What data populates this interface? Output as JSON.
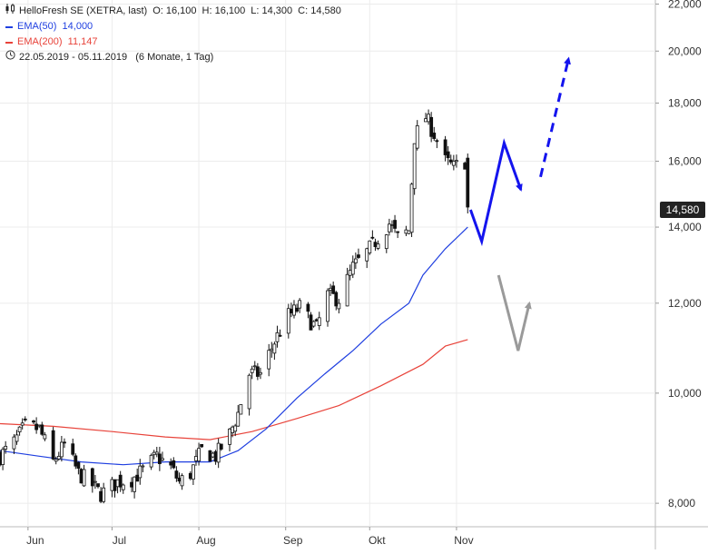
{
  "header": {
    "instrument": "HelloFresh SE (XETRA, last)",
    "open_label": "O:",
    "open": "16,100",
    "high_label": "H:",
    "high": "16,100",
    "low_label": "L:",
    "low": "14,300",
    "close_label": "C:",
    "close": "14,580",
    "ema50_label": "EMA(50)",
    "ema50_value": "14,000",
    "ema200_label": "EMA(200)",
    "ema200_value": "11,147",
    "range": "22.05.2019 - 05.11.2019",
    "range_detail": "(6 Monate, 1 Tag)",
    "chart_icon": "candlestick-icon",
    "clock_icon": "clock-icon"
  },
  "last_price_tag": "14,580",
  "colors": {
    "ema50": "#1f3fe0",
    "ema200": "#e8433a",
    "arrow_blue": "#1414ee",
    "arrow_gray": "#9a9a9a",
    "candle": "#111111"
  },
  "chart_data": {
    "type": "candlestick",
    "title": "HelloFresh SE (XETRA, last)",
    "y_scale": "log",
    "ylim": [
      7600,
      22100
    ],
    "y_ticks": [
      "22,000",
      "20,000",
      "18,000",
      "16,000",
      "14,000",
      "12,000",
      "10,000",
      "8,000"
    ],
    "y_tick_values": [
      22000,
      20000,
      18000,
      16000,
      14000,
      12000,
      10000,
      8000
    ],
    "x_ticks": [
      "Jun",
      "Jul",
      "Aug",
      "Sep",
      "Okt",
      "Nov"
    ],
    "x_tick_dates": [
      "2019-06-01",
      "2019-07-01",
      "2019-08-01",
      "2019-09-01",
      "2019-10-01",
      "2019-11-01"
    ],
    "x_range": [
      "2019-05-22",
      "2020-01-11"
    ],
    "grid": true,
    "close_series": [
      [
        "2019-05-22",
        8800
      ],
      [
        "2019-05-27",
        9050
      ],
      [
        "2019-05-31",
        9350
      ],
      [
        "2019-06-05",
        9300
      ],
      [
        "2019-06-10",
        8700
      ],
      [
        "2019-06-14",
        9000
      ],
      [
        "2019-06-19",
        8500
      ],
      [
        "2019-06-24",
        8300
      ],
      [
        "2019-06-27",
        8150
      ],
      [
        "2019-07-03",
        8350
      ],
      [
        "2019-07-08",
        8400
      ],
      [
        "2019-07-12",
        8550
      ],
      [
        "2019-07-17",
        8800
      ],
      [
        "2019-07-22",
        8600
      ],
      [
        "2019-07-25",
        8350
      ],
      [
        "2019-07-29",
        8500
      ],
      [
        "2019-08-02",
        8900
      ],
      [
        "2019-08-07",
        8800
      ],
      [
        "2019-08-12",
        9200
      ],
      [
        "2019-08-15",
        9600
      ],
      [
        "2019-08-19",
        10400
      ],
      [
        "2019-08-23",
        10400
      ],
      [
        "2019-08-28",
        11100
      ],
      [
        "2019-09-02",
        11700
      ],
      [
        "2019-09-06",
        11900
      ],
      [
        "2019-09-12",
        11400
      ],
      [
        "2019-09-16",
        12200
      ],
      [
        "2019-09-20",
        12100
      ],
      [
        "2019-09-25",
        12900
      ],
      [
        "2019-09-30",
        13300
      ],
      [
        "2019-10-04",
        13700
      ],
      [
        "2019-10-08",
        14100
      ],
      [
        "2019-10-11",
        13700
      ],
      [
        "2019-10-15",
        13900
      ],
      [
        "2019-10-17",
        16800
      ],
      [
        "2019-10-21",
        17500
      ],
      [
        "2019-10-24",
        16900
      ],
      [
        "2019-10-28",
        16000
      ],
      [
        "2019-10-31",
        15800
      ],
      [
        "2019-11-04",
        16000
      ],
      [
        "2019-11-05",
        14580
      ]
    ],
    "ema50": [
      [
        "2019-05-22",
        8900
      ],
      [
        "2019-06-05",
        8800
      ],
      [
        "2019-06-20",
        8700
      ],
      [
        "2019-07-05",
        8650
      ],
      [
        "2019-07-20",
        8700
      ],
      [
        "2019-08-05",
        8700
      ],
      [
        "2019-08-15",
        8900
      ],
      [
        "2019-08-25",
        9300
      ],
      [
        "2019-09-05",
        9900
      ],
      [
        "2019-09-15",
        10400
      ],
      [
        "2019-09-25",
        10900
      ],
      [
        "2019-10-05",
        11500
      ],
      [
        "2019-10-15",
        12000
      ],
      [
        "2019-10-20",
        12700
      ],
      [
        "2019-10-28",
        13400
      ],
      [
        "2019-11-05",
        14000
      ]
    ],
    "ema200": [
      [
        "2019-05-22",
        9400
      ],
      [
        "2019-06-10",
        9350
      ],
      [
        "2019-07-01",
        9250
      ],
      [
        "2019-07-20",
        9150
      ],
      [
        "2019-08-05",
        9100
      ],
      [
        "2019-08-20",
        9250
      ],
      [
        "2019-09-05",
        9500
      ],
      [
        "2019-09-20",
        9750
      ],
      [
        "2019-10-05",
        10150
      ],
      [
        "2019-10-20",
        10600
      ],
      [
        "2019-10-28",
        11000
      ],
      [
        "2019-11-05",
        11147
      ]
    ],
    "annotations": [
      {
        "type": "arrow",
        "color": "blue",
        "style": "solid",
        "path": [
          [
            "2019-11-06",
            14500
          ],
          [
            "2019-11-10",
            13600
          ],
          [
            "2019-11-18",
            16600
          ],
          [
            "2019-11-24",
            15100
          ]
        ]
      },
      {
        "type": "arrow",
        "color": "blue",
        "style": "dashed",
        "path": [
          [
            "2019-12-01",
            15500
          ],
          [
            "2019-12-11",
            19700
          ]
        ]
      },
      {
        "type": "arrow",
        "color": "gray",
        "style": "solid",
        "path": [
          [
            "2019-11-16",
            12700
          ],
          [
            "2019-11-23",
            10900
          ],
          [
            "2019-11-27",
            12000
          ]
        ]
      }
    ]
  }
}
